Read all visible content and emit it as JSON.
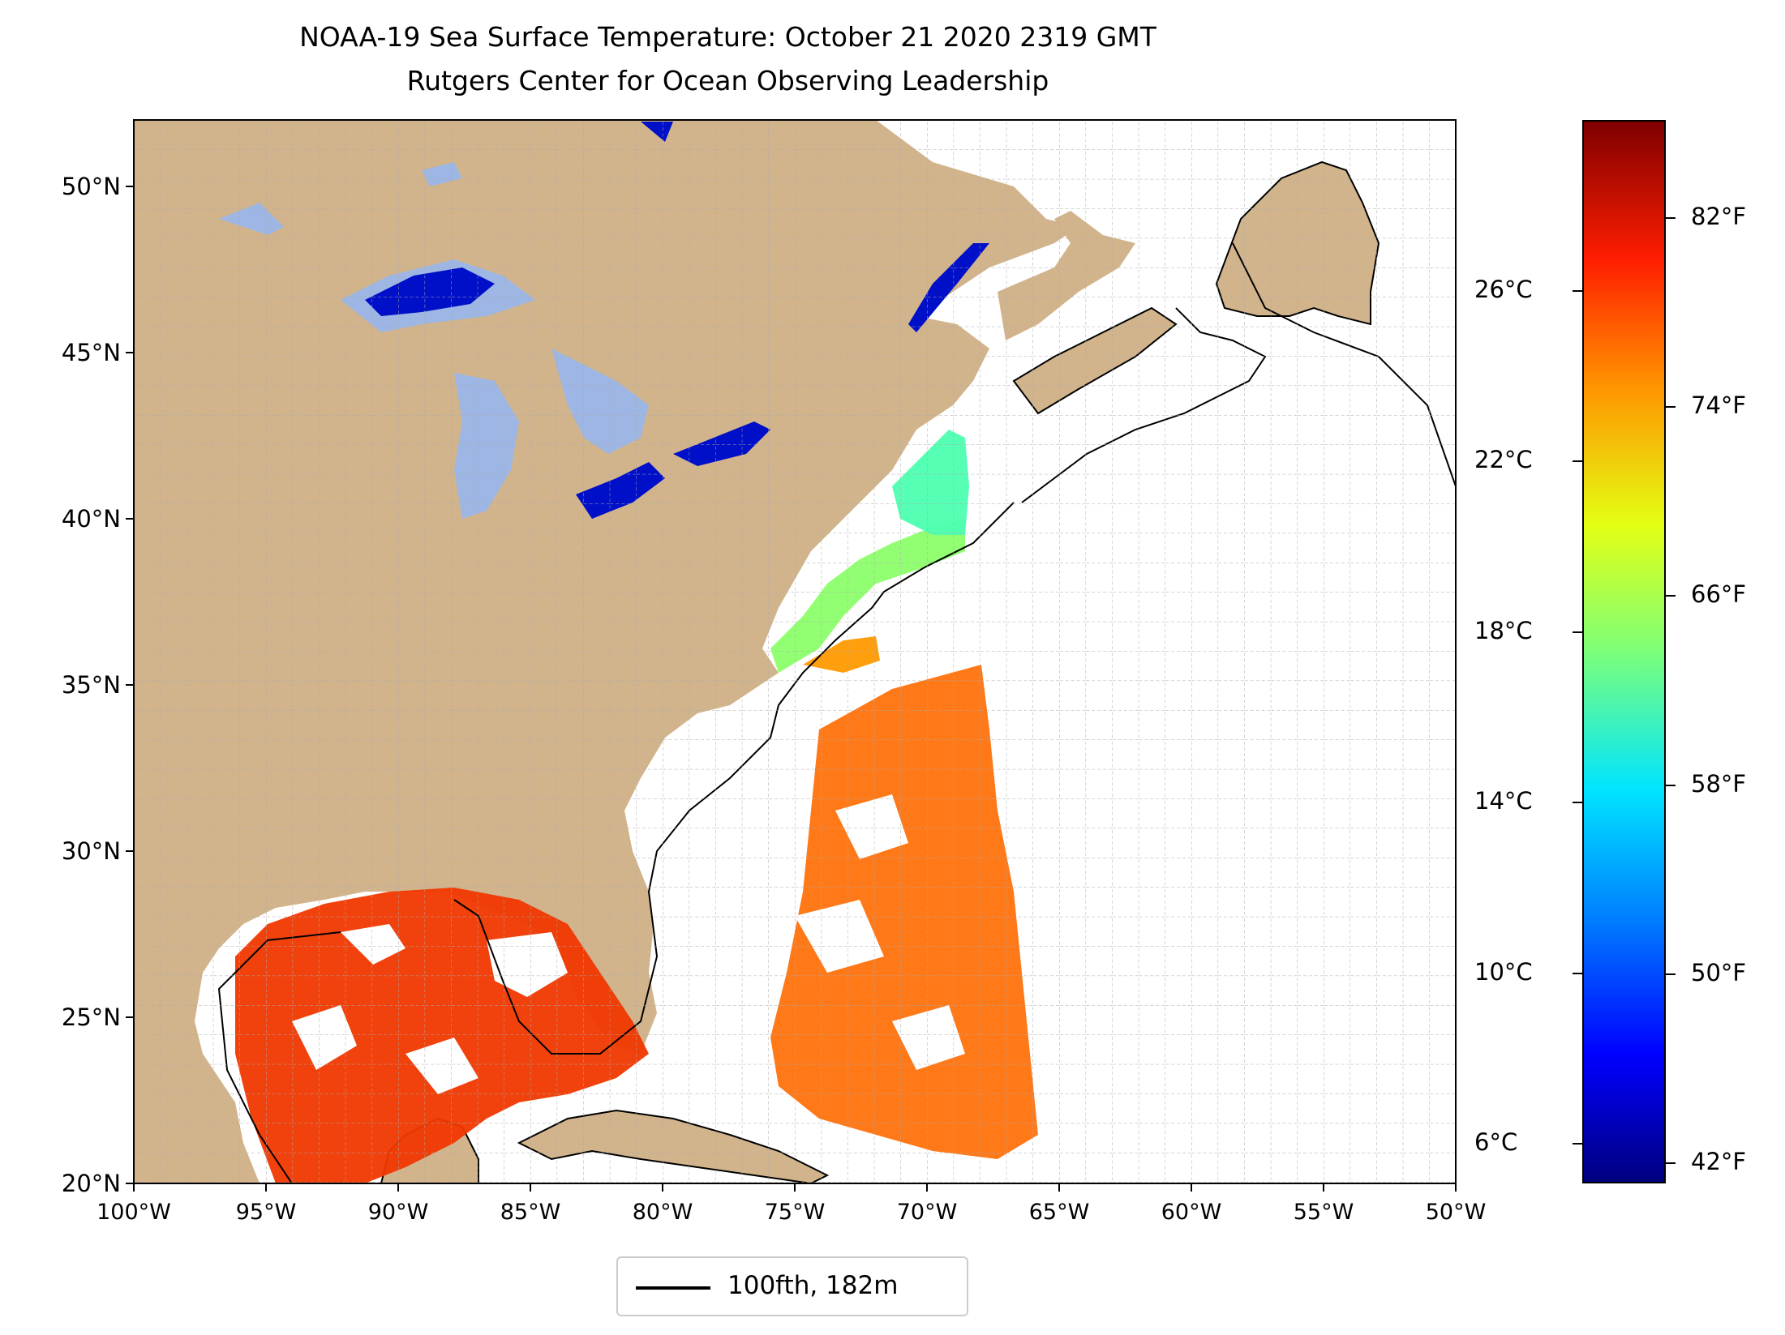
{
  "title": {
    "line1": "NOAA-19 Sea Surface Temperature: October 21 2020 2319 GMT",
    "line2": "Rutgers Center for Ocean Observing Leadership"
  },
  "map": {
    "lon_range": [
      -100,
      -50
    ],
    "lat_range": [
      20,
      52
    ],
    "x_ticks": [
      "100°W",
      "95°W",
      "90°W",
      "85°W",
      "80°W",
      "75°W",
      "70°W",
      "65°W",
      "60°W",
      "55°W",
      "50°W"
    ],
    "y_ticks": [
      "20°N",
      "25°N",
      "30°N",
      "35°N",
      "40°N",
      "45°N",
      "50°N"
    ],
    "grid": true,
    "land_color": "#d2b48c",
    "lakes_color": "#9db6e4",
    "contour_color": "#000000"
  },
  "colorbar": {
    "colormap": "jet",
    "celsius_ticks": [
      "26°C",
      "22°C",
      "18°C",
      "14°C",
      "10°C",
      "6°C"
    ],
    "fahrenheit_ticks": [
      "82°F",
      "74°F",
      "66°F",
      "58°F",
      "50°F",
      "42°F"
    ]
  },
  "legend": {
    "label": "100fth, 182m"
  }
}
